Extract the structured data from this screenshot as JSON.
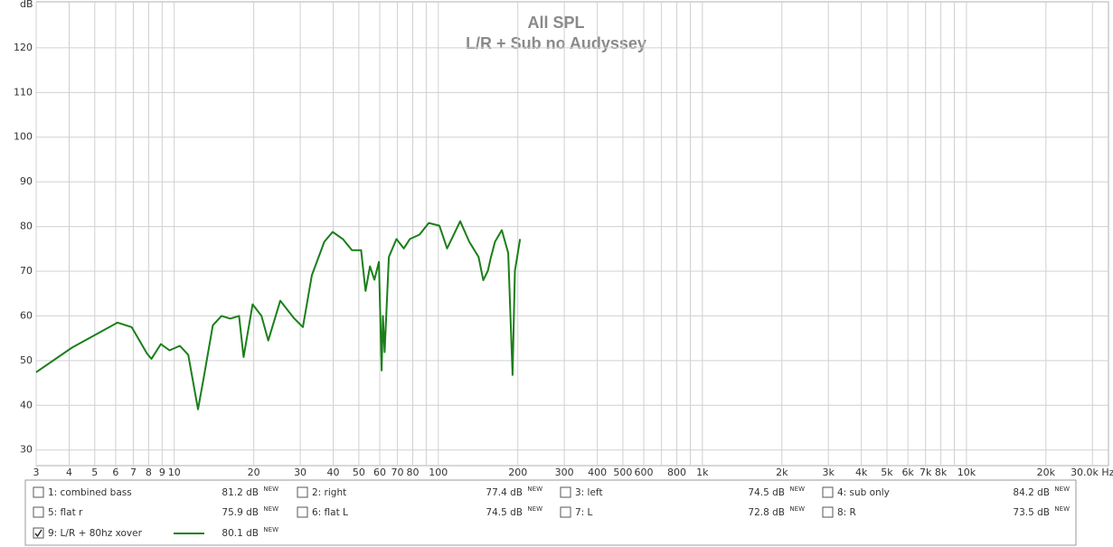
{
  "chart_data": {
    "type": "line",
    "title": "All SPL",
    "subtitle": "L/R + Sub no Audyssey",
    "y_label": "dB",
    "log_x": true,
    "grid": true,
    "xlim": [
      3,
      34500
    ],
    "ylim": [
      26.5,
      130.3
    ],
    "yticks": [
      30,
      40,
      50,
      60,
      70,
      80,
      90,
      100,
      110,
      120
    ],
    "xticks": [
      3,
      4,
      5,
      6,
      7,
      8,
      9,
      10,
      20,
      30,
      40,
      50,
      60,
      70,
      80,
      100,
      200,
      300,
      400,
      500,
      600,
      800,
      {
        "value": 1000,
        "label": "1k"
      },
      {
        "value": 2000,
        "label": "2k"
      },
      {
        "value": 3000,
        "label": "3k"
      },
      {
        "value": 4000,
        "label": "4k"
      },
      {
        "value": 5000,
        "label": "5k"
      },
      {
        "value": 6000,
        "label": "6k"
      },
      {
        "value": 7000,
        "label": "7k"
      },
      {
        "value": 8000,
        "label": "8k"
      },
      {
        "value": 10000,
        "label": "10k"
      },
      {
        "value": 20000,
        "label": "20k"
      },
      {
        "value": 30000,
        "label": "30.0k Hz"
      }
    ],
    "x_minor_grid": [
      90,
      700,
      900,
      9000
    ],
    "series": [
      {
        "name": "9: L/R + 80hz xover",
        "color": "#1a7f1a",
        "reading": "80.1 dB",
        "badge": "NEW",
        "checked": true,
        "x": [
          3,
          4.1,
          6.1,
          6.9,
          7.9,
          8.2,
          8.9,
          9.6,
          10.5,
          11.3,
          12.3,
          12.9,
          14,
          15.1,
          16.3,
          17.6,
          18.3,
          19.8,
          21.4,
          22.7,
          25.2,
          28.3,
          30.7,
          33.2,
          37,
          39.8,
          43.5,
          47.1,
          51,
          53,
          55.1,
          57.3,
          59.6,
          61,
          61.7,
          62.6,
          65,
          69.4,
          74,
          78,
          84.9,
          92,
          101,
          108,
          121,
          131,
          142,
          148,
          154,
          158,
          164,
          174,
          184,
          191,
          195,
          204
        ],
        "values": [
          47.4,
          52.9,
          58.5,
          57.5,
          51.5,
          50.4,
          53.7,
          52.3,
          53.3,
          51.3,
          39.1,
          45.8,
          57.9,
          60,
          59.4,
          60,
          50.8,
          62.6,
          60,
          54.5,
          63.4,
          59.6,
          57.5,
          69.1,
          76.6,
          78.8,
          77.2,
          74.7,
          74.7,
          65.6,
          71.1,
          68.1,
          72.1,
          47.8,
          60,
          51.9,
          73.2,
          77.2,
          75.1,
          77.2,
          78.2,
          80.8,
          80.2,
          75.1,
          81.2,
          76.6,
          73.2,
          68,
          70.1,
          73,
          76.6,
          79.2,
          74.1,
          46.8,
          70.1,
          77.2
        ]
      }
    ],
    "legend_items": [
      {
        "name": "1: combined bass",
        "reading": "81.2 dB",
        "badge": "NEW",
        "color": "#2a8a2a",
        "checked": false
      },
      {
        "name": "2: right",
        "reading": "77.4 dB",
        "badge": "NEW",
        "color": "#7a2a9a",
        "checked": false
      },
      {
        "name": "3: left",
        "reading": "74.5 dB",
        "badge": "NEW",
        "color": "#8a2a9a",
        "checked": false
      },
      {
        "name": "4: sub only",
        "reading": "84.2 dB",
        "badge": "NEW",
        "color": "#2a6a7a",
        "checked": false
      },
      {
        "name": "5: flat r",
        "reading": "75.9 dB",
        "badge": "NEW",
        "color": "#1a9a7a",
        "checked": false
      },
      {
        "name": "6: flat L",
        "reading": "74.5 dB",
        "badge": "NEW",
        "color": "#9a2a8a",
        "checked": false
      },
      {
        "name": "7: L",
        "reading": "72.8 dB",
        "badge": "NEW",
        "color": "#2a7a9a",
        "checked": false
      },
      {
        "name": "8: R",
        "reading": "73.5 dB",
        "badge": "NEW",
        "color": "#9a1a1a",
        "checked": false
      }
    ]
  }
}
